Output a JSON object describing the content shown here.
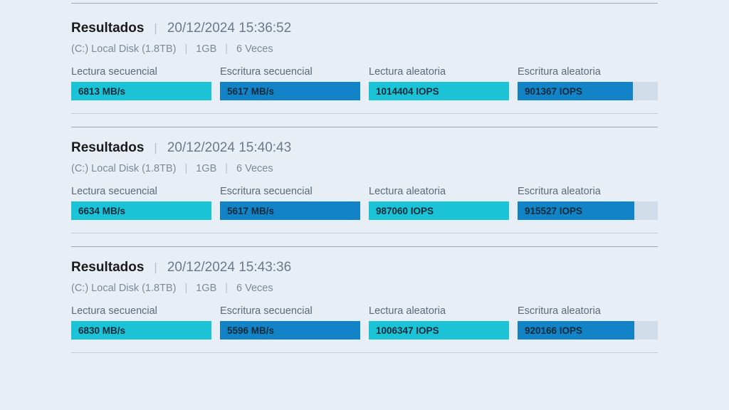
{
  "labels": {
    "title": "Resultados",
    "seq_read": "Lectura secuencial",
    "seq_write": "Escritura secuencial",
    "rand_read": "Lectura aleatoria",
    "rand_write": "Escritura aleatoria"
  },
  "colors": {
    "seq_read": "#1bc3d6",
    "seq_write": "#1283c6",
    "rand_read": "#1bc3d6",
    "rand_write": "#1283c6",
    "track": "#d0dde9"
  },
  "results": [
    {
      "timestamp": "20/12/2024 15:36:52",
      "disk": "(C:) Local Disk (1.8TB)",
      "size": "1GB",
      "runs": "6 Veces",
      "metrics": {
        "seq_read": {
          "value": "6813 MB/s",
          "fill_pct": 100
        },
        "seq_write": {
          "value": "5617 MB/s",
          "fill_pct": 100
        },
        "rand_read": {
          "value": "1014404 IOPS",
          "fill_pct": 100
        },
        "rand_write": {
          "value": "901367 IOPS",
          "fill_pct": 82
        }
      }
    },
    {
      "timestamp": "20/12/2024 15:40:43",
      "disk": "(C:) Local Disk (1.8TB)",
      "size": "1GB",
      "runs": "6 Veces",
      "metrics": {
        "seq_read": {
          "value": "6634 MB/s",
          "fill_pct": 100
        },
        "seq_write": {
          "value": "5617 MB/s",
          "fill_pct": 100
        },
        "rand_read": {
          "value": "987060 IOPS",
          "fill_pct": 100
        },
        "rand_write": {
          "value": "915527 IOPS",
          "fill_pct": 83
        }
      }
    },
    {
      "timestamp": "20/12/2024 15:43:36",
      "disk": "(C:) Local Disk (1.8TB)",
      "size": "1GB",
      "runs": "6 Veces",
      "metrics": {
        "seq_read": {
          "value": "6830 MB/s",
          "fill_pct": 100
        },
        "seq_write": {
          "value": "5596 MB/s",
          "fill_pct": 100
        },
        "rand_read": {
          "value": "1006347 IOPS",
          "fill_pct": 100
        },
        "rand_write": {
          "value": "920166 IOPS",
          "fill_pct": 83
        }
      }
    }
  ]
}
